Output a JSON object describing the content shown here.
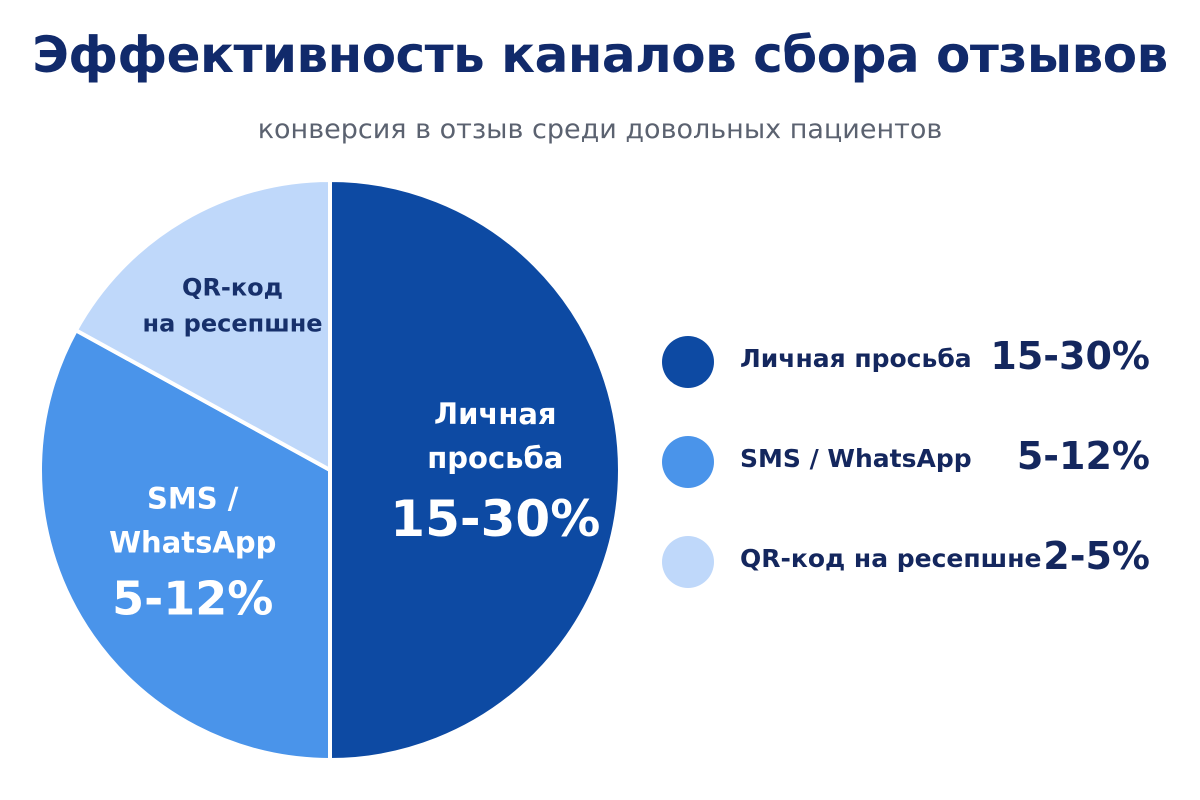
{
  "title": "Эффективность каналов сбора отзывов",
  "subtitle": "конверсия в отзыв среди довольных пациентов",
  "colors": {
    "title": "#112a6b",
    "subtitle": "#5b6270",
    "text_dark": "#14275e",
    "slice_label_light": "#ffffff",
    "slice_label_dark": "#17306b"
  },
  "chart_data": {
    "type": "pie",
    "title": "Эффективность каналов сбора отзывов",
    "subtitle": "конверсия в отзыв среди довольных пациентов",
    "legend_position": "right",
    "slices": [
      {
        "name": "Личная просьба",
        "slice_label_lines": [
          "Личная",
          "просьба"
        ],
        "value_label": "15-30%",
        "share": 0.5,
        "color": "#0d4aa3"
      },
      {
        "name": "SMS / WhatsApp",
        "slice_label_lines": [
          "SMS /",
          "WhatsApp"
        ],
        "value_label": "5-12%",
        "share": 0.33,
        "color": "#4a94ea"
      },
      {
        "name": "QR-код на ресепшне",
        "slice_label_lines": [
          "QR-код",
          "на ресепшне"
        ],
        "value_label": "",
        "legend_value": "2-5%",
        "share": 0.17,
        "color": "#bfd8fa"
      }
    ]
  }
}
